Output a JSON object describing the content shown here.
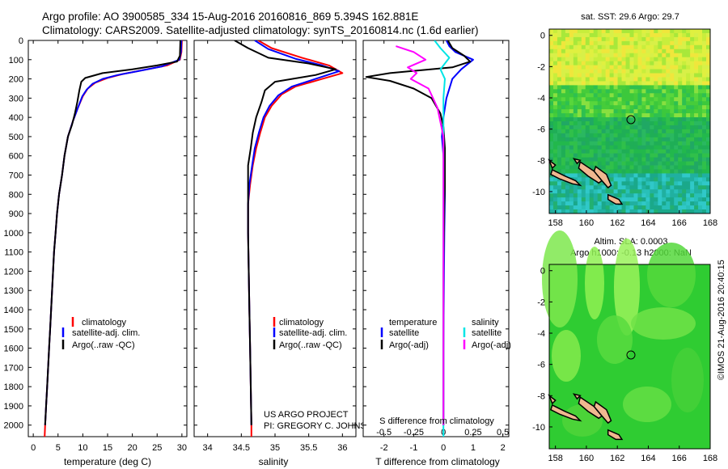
{
  "header": {
    "line1": "Argo profile: AO 3900585_334 15-Aug-2016 20160816_869 5.394S 162.881E",
    "line2": "Climatology: CARS2009. Satellite-adjusted climatology: synTS_20160814.nc (1.6d earlier)"
  },
  "credit": {
    "line1": "US ARGO PROJECT",
    "line2": "PI: GREGORY C. JOHNSON"
  },
  "imos_stamp": "©IMOS 21-Aug-2016 20:40:15",
  "colors": {
    "climatology": "#ff0000",
    "satellite": "#0000ff",
    "argo": "#000000",
    "salinity_satellite": "#00e5e5",
    "salinity_argo": "#ff00ff"
  },
  "depth_axis": {
    "ticks": [
      0,
      100,
      200,
      300,
      400,
      500,
      600,
      700,
      800,
      900,
      1000,
      1100,
      1200,
      1300,
      1400,
      1500,
      1600,
      1700,
      1800,
      1900,
      2000
    ],
    "range": [
      0,
      2060
    ]
  },
  "chart_data": [
    {
      "type": "line",
      "id": "temperature",
      "xlabel": "temperature (deg C)",
      "xlim": [
        -1,
        31
      ],
      "xticks": [
        0,
        5,
        10,
        15,
        20,
        25,
        30
      ],
      "legend": [
        "climatology",
        "satellite-adj. clim.",
        "Argo(..raw -QC)"
      ],
      "series": [
        {
          "name": "climatology",
          "color": "#ff0000",
          "points": [
            [
              30,
              0
            ],
            [
              29.9,
              60
            ],
            [
              29.6,
              100
            ],
            [
              27,
              130
            ],
            [
              22,
              155
            ],
            [
              18,
              175
            ],
            [
              15,
              195
            ],
            [
              12.5,
              220
            ],
            [
              11,
              250
            ],
            [
              10,
              290
            ],
            [
              9,
              350
            ],
            [
              8,
              420
            ],
            [
              7,
              500
            ],
            [
              6.3,
              600
            ],
            [
              5.8,
              700
            ],
            [
              5.2,
              800
            ],
            [
              4.8,
              900
            ],
            [
              4.5,
              1000
            ],
            [
              4.2,
              1100
            ],
            [
              4,
              1200
            ],
            [
              3.8,
              1300
            ],
            [
              3.6,
              1400
            ],
            [
              3.4,
              1500
            ],
            [
              3.2,
              1600
            ],
            [
              3,
              1700
            ],
            [
              2.8,
              1800
            ],
            [
              2.6,
              1900
            ],
            [
              2.4,
              2000
            ],
            [
              2.3,
              2060
            ]
          ]
        },
        {
          "name": "satellite-adj. clim.",
          "color": "#0000ff",
          "points": [
            [
              29.9,
              0
            ],
            [
              29.8,
              60
            ],
            [
              29.5,
              100
            ],
            [
              26,
              135
            ],
            [
              21,
              160
            ],
            [
              17,
              180
            ],
            [
              14,
              200
            ],
            [
              12,
              225
            ],
            [
              10.8,
              255
            ],
            [
              9.9,
              290
            ],
            [
              9,
              350
            ],
            [
              8,
              420
            ],
            [
              7,
              500
            ],
            [
              6.3,
              600
            ],
            [
              5.8,
              700
            ],
            [
              5.2,
              800
            ],
            [
              4.8,
              900
            ],
            [
              4.5,
              1000
            ],
            [
              4.2,
              1100
            ],
            [
              4,
              1200
            ],
            [
              3.8,
              1300
            ],
            [
              3.6,
              1400
            ],
            [
              3.4,
              1500
            ],
            [
              3.2,
              1600
            ],
            [
              3,
              1700
            ],
            [
              2.8,
              1800
            ],
            [
              2.6,
              1900
            ],
            [
              2.4,
              2000
            ]
          ]
        },
        {
          "name": "Argo(..raw -QC)",
          "color": "#000000",
          "points": [
            [
              29.7,
              0
            ],
            [
              29.6,
              80
            ],
            [
              29,
              110
            ],
            [
              25,
              130
            ],
            [
              20,
              150
            ],
            [
              14,
              170
            ],
            [
              10.5,
              195
            ],
            [
              9.7,
              215
            ],
            [
              9.3,
              260
            ],
            [
              8.9,
              320
            ],
            [
              8.4,
              380
            ],
            [
              7.8,
              440
            ],
            [
              7,
              500
            ],
            [
              6.3,
              600
            ],
            [
              5.8,
              700
            ],
            [
              5.2,
              800
            ],
            [
              4.8,
              900
            ],
            [
              4.5,
              1000
            ],
            [
              4.2,
              1100
            ],
            [
              4,
              1200
            ],
            [
              3.8,
              1300
            ],
            [
              3.6,
              1400
            ],
            [
              3.4,
              1500
            ],
            [
              3.2,
              1600
            ],
            [
              3,
              1700
            ],
            [
              2.8,
              1800
            ],
            [
              2.6,
              1900
            ],
            [
              2.4,
              2000
            ]
          ]
        }
      ]
    },
    {
      "type": "line",
      "id": "salinity",
      "xlabel": "salinity",
      "xlim": [
        33.8,
        36.2
      ],
      "xticks": [
        34,
        34.5,
        35,
        35.5,
        36
      ],
      "xticklabels": [
        "34",
        "34.5",
        "35",
        "35.5",
        "36"
      ],
      "legend": [
        "climatology",
        "satellite-adj. clim.",
        "Argo(..raw -QC)"
      ],
      "series": [
        {
          "name": "climatology",
          "color": "#ff0000",
          "points": [
            [
              34.75,
              0
            ],
            [
              34.95,
              40
            ],
            [
              35.4,
              90
            ],
            [
              35.8,
              130
            ],
            [
              36,
              170
            ],
            [
              35.7,
              200
            ],
            [
              35.3,
              240
            ],
            [
              35.1,
              280
            ],
            [
              34.95,
              340
            ],
            [
              34.85,
              400
            ],
            [
              34.78,
              480
            ],
            [
              34.72,
              560
            ],
            [
              34.67,
              650
            ],
            [
              34.63,
              750
            ],
            [
              34.6,
              850
            ],
            [
              34.6,
              1000
            ],
            [
              34.61,
              1200
            ],
            [
              34.62,
              1400
            ],
            [
              34.63,
              1600
            ],
            [
              34.64,
              1800
            ],
            [
              34.65,
              2000
            ],
            [
              34.65,
              2060
            ]
          ]
        },
        {
          "name": "satellite-adj. clim.",
          "color": "#0000ff",
          "points": [
            [
              34.7,
              0
            ],
            [
              34.9,
              45
            ],
            [
              35.3,
              95
            ],
            [
              35.7,
              130
            ],
            [
              35.95,
              160
            ],
            [
              35.6,
              200
            ],
            [
              35.25,
              240
            ],
            [
              35.05,
              285
            ],
            [
              34.92,
              340
            ],
            [
              34.83,
              400
            ],
            [
              34.76,
              480
            ],
            [
              34.7,
              560
            ],
            [
              34.66,
              650
            ],
            [
              34.62,
              750
            ],
            [
              34.6,
              850
            ],
            [
              34.6,
              1000
            ],
            [
              34.61,
              1200
            ],
            [
              34.62,
              1400
            ],
            [
              34.63,
              1600
            ],
            [
              34.64,
              1800
            ],
            [
              34.65,
              2000
            ]
          ]
        },
        {
          "name": "Argo(..raw -QC)",
          "color": "#000000",
          "points": [
            [
              34.4,
              0
            ],
            [
              34.6,
              40
            ],
            [
              34.9,
              90
            ],
            [
              35.5,
              120
            ],
            [
              35.9,
              150
            ],
            [
              35.6,
              180
            ],
            [
              35.0,
              215
            ],
            [
              34.85,
              260
            ],
            [
              34.8,
              320
            ],
            [
              34.72,
              400
            ],
            [
              34.67,
              480
            ],
            [
              34.64,
              560
            ],
            [
              34.6,
              650
            ],
            [
              34.6,
              750
            ],
            [
              34.6,
              850
            ],
            [
              34.6,
              1000
            ],
            [
              34.61,
              1200
            ],
            [
              34.62,
              1400
            ],
            [
              34.63,
              1600
            ],
            [
              34.64,
              1800
            ],
            [
              34.65,
              2000
            ]
          ]
        }
      ]
    },
    {
      "type": "line",
      "id": "difference",
      "xlabel": "T difference from climatology",
      "xlabel_top": "S difference from climatology",
      "xlim": [
        -2.7,
        2.2
      ],
      "xticks": [
        -2,
        -1,
        0,
        1,
        2
      ],
      "top_xticks": [
        -0.5,
        -0.25,
        0,
        0.25,
        0.5
      ],
      "top_xticklabels": [
        "-0.5",
        "-0.25",
        "0",
        "0.25",
        "0.5"
      ],
      "legend_headers": [
        "temperature",
        "salinity"
      ],
      "legend": [
        "satellite",
        "Argo(-adj)",
        "satellite",
        "Argo(-adj)"
      ],
      "series": [
        {
          "name": "satellite",
          "color": "#0000ff",
          "points": [
            [
              0.1,
              0
            ],
            [
              0.2,
              30
            ],
            [
              0.4,
              60
            ],
            [
              1.0,
              100
            ],
            [
              0.6,
              150
            ],
            [
              0.3,
              200
            ],
            [
              0.1,
              300
            ],
            [
              0,
              400
            ],
            [
              -0.05,
              500
            ],
            [
              0,
              600
            ],
            [
              0.05,
              700
            ],
            [
              0.05,
              800
            ],
            [
              0.03,
              1000
            ],
            [
              0.02,
              1200
            ],
            [
              0,
              1600
            ],
            [
              0,
              2000
            ]
          ]
        },
        {
          "name": "Argo(-adj)",
          "color": "#000000",
          "points": [
            [
              0.15,
              0
            ],
            [
              0.3,
              40
            ],
            [
              0.7,
              80
            ],
            [
              0.9,
              110
            ],
            [
              0.3,
              140
            ],
            [
              -1.8,
              170
            ],
            [
              -2.6,
              190
            ],
            [
              -1.8,
              210
            ],
            [
              -1.0,
              250
            ],
            [
              -0.4,
              300
            ],
            [
              -0.1,
              380
            ],
            [
              0,
              450
            ],
            [
              0.05,
              560
            ],
            [
              0.05,
              650
            ],
            [
              0.05,
              760
            ],
            [
              0.03,
              860
            ],
            [
              0.02,
              1000
            ],
            [
              0,
              1200
            ],
            [
              0,
              1400
            ],
            [
              0,
              1600
            ],
            [
              0,
              1800
            ],
            [
              0,
              2000
            ]
          ]
        },
        {
          "name": "satellite",
          "color": "#00e5e5",
          "points": [
            [
              -0.3,
              0
            ],
            [
              -0.1,
              40
            ],
            [
              0.2,
              90
            ],
            [
              -0.1,
              150
            ],
            [
              0.05,
              200
            ],
            [
              0,
              300
            ],
            [
              0,
              500
            ],
            [
              0,
              800
            ],
            [
              0,
              1200
            ],
            [
              0,
              1600
            ],
            [
              0,
              2060
            ]
          ]
        },
        {
          "name": "Argo(-adj)",
          "color": "#ff00ff",
          "points": [
            [
              -1.6,
              30
            ],
            [
              -1.0,
              60
            ],
            [
              -0.6,
              100
            ],
            [
              -1.2,
              140
            ],
            [
              -0.9,
              170
            ],
            [
              -1.1,
              200
            ],
            [
              -0.5,
              250
            ],
            [
              -0.2,
              350
            ],
            [
              0,
              500
            ],
            [
              0,
              800
            ],
            [
              0,
              1200
            ],
            [
              0,
              2000
            ]
          ]
        }
      ]
    },
    {
      "type": "heatmap",
      "id": "sst-map",
      "title": "sat. SST: 29.6  Argo: 29.7",
      "xlim": [
        157.6,
        168
      ],
      "ylim": [
        -11.4,
        0.4
      ],
      "xticks": [
        158,
        160,
        162,
        164,
        166,
        168
      ],
      "yticks": [
        0,
        -2,
        -4,
        -6,
        -8,
        -10
      ],
      "marker": {
        "lon": 162.881,
        "lat": -5.394
      }
    },
    {
      "type": "heatmap",
      "id": "sla-map",
      "title_line1": "Altim. SLA: 0.0003",
      "title_line2": "Argo h1000: -0.13 h2000: NaN",
      "xlim": [
        157.6,
        168
      ],
      "ylim": [
        -11.4,
        0.4
      ],
      "xticks": [
        158,
        160,
        162,
        164,
        166,
        168
      ],
      "yticks": [
        0,
        -2,
        -4,
        -6,
        -8,
        -10
      ],
      "marker": {
        "lon": 162.881,
        "lat": -5.394
      }
    }
  ]
}
